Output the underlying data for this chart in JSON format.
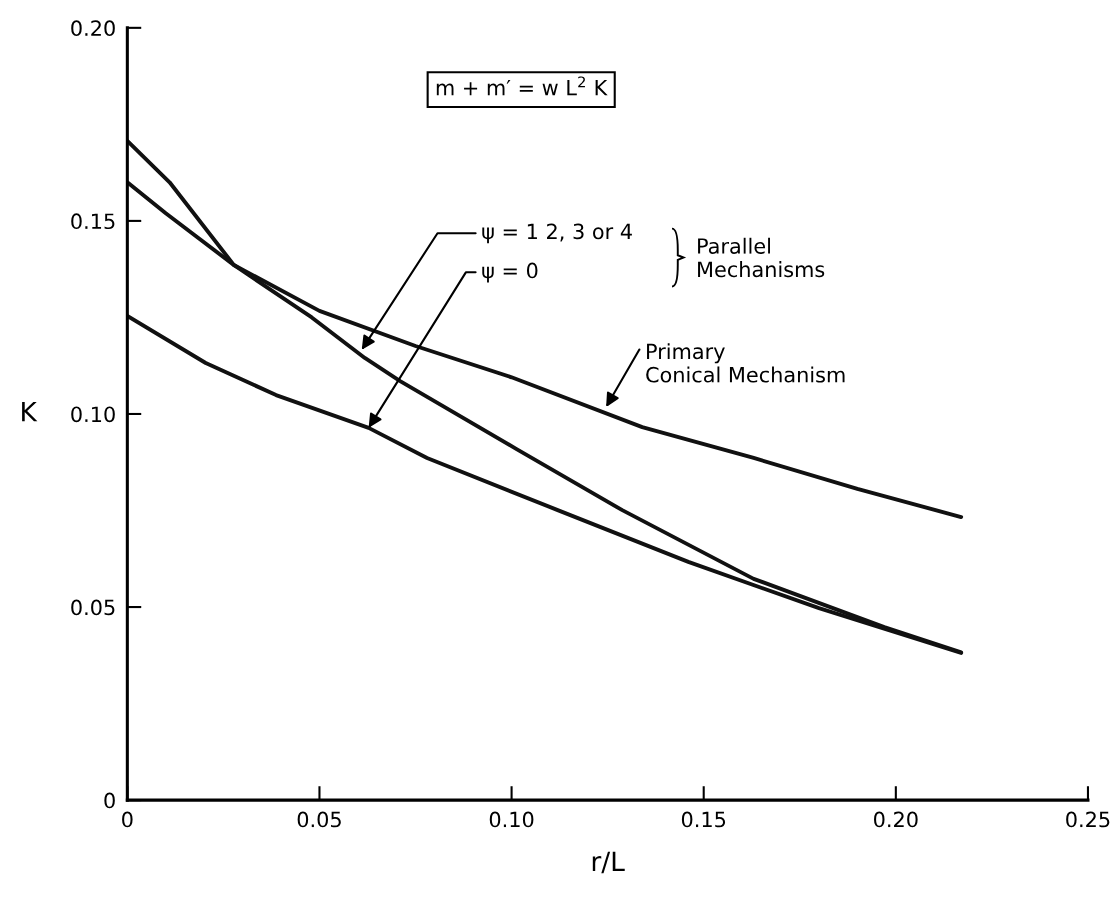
{
  "chart_data": {
    "type": "line",
    "xlabel": "r/L",
    "ylabel": "K",
    "xlim": [
      0,
      0.25
    ],
    "ylim": [
      0,
      0.2
    ],
    "xticks": [
      {
        "value": 0,
        "label": "0"
      },
      {
        "value": 0.05,
        "label": "0.05"
      },
      {
        "value": 0.1,
        "label": "0.10"
      },
      {
        "value": 0.15,
        "label": "0.15"
      },
      {
        "value": 0.2,
        "label": "0.20"
      },
      {
        "value": 0.25,
        "label": "0.25"
      }
    ],
    "yticks": [
      {
        "value": 0,
        "label": "0"
      },
      {
        "value": 0.05,
        "label": "0.05"
      },
      {
        "value": 0.1,
        "label": "0.10"
      },
      {
        "value": 0.15,
        "label": "0.15"
      },
      {
        "value": 0.2,
        "label": "0.20"
      }
    ],
    "grid": false,
    "legend": false,
    "marker": "none",
    "line_style": "solid",
    "series": [
      {
        "color": "#111111",
        "x": [
          0,
          0.01,
          0.0277,
          0.05,
          0.075,
          0.1,
          0.134,
          0.163,
          0.19,
          0.217
        ],
        "values": [
          0.16,
          0.152,
          0.1386,
          0.1267,
          0.1176,
          0.1095,
          0.0966,
          0.0886,
          0.0806,
          0.0733
        ]
      },
      {
        "color": "#111111",
        "x": [
          0,
          0.011,
          0.0277,
          0.048,
          0.0618,
          0.071,
          0.1013,
          0.1288,
          0.163,
          0.197,
          0.217
        ],
        "values": [
          0.1707,
          0.16,
          0.1386,
          0.125,
          0.1145,
          0.1085,
          0.0909,
          0.0751,
          0.0573,
          0.0448,
          0.0383
        ]
      },
      {
        "color": "#111111",
        "x": [
          0,
          0.0204,
          0.0387,
          0.0628,
          0.078,
          0.112,
          0.146,
          0.18,
          0.217
        ],
        "values": [
          0.1254,
          0.1132,
          0.1049,
          0.0964,
          0.0886,
          0.0751,
          0.0617,
          0.0497,
          0.0381
        ]
      }
    ],
    "annotations": [
      {
        "text": "ψ = 1 2, 3 or 4",
        "x": 0.061,
        "y": 0.1166
      },
      {
        "text": "ψ = 0",
        "x": 0.0628,
        "y": 0.0964
      },
      {
        "text": "Primary\nConical Mechanism",
        "x": 0.1246,
        "y": 0.1018
      },
      "Parallel\nMechanisms",
      "m + m′ = w L$^{2}$ K"
    ]
  }
}
